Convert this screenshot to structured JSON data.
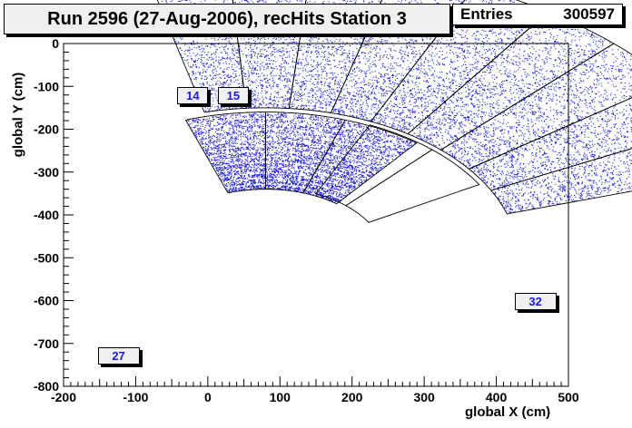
{
  "title": "Run 2596 (27-Aug-2006), recHits Station 3",
  "stats": {
    "entries_label": "Entries",
    "entries_value": "300597"
  },
  "colors": {
    "hits": "#1f1fe0",
    "frame": "#000000",
    "label_text": "#1a1adc",
    "label_bg": "#f0f0f0"
  },
  "chart_data": {
    "type": "scatter",
    "title": "Run 2596 (27-Aug-2006), recHits Station 3",
    "xlabel": "global X (cm)",
    "ylabel": "global Y (cm)",
    "xlim": [
      -200,
      500
    ],
    "ylim": [
      -800,
      0
    ],
    "x_ticks": [
      -200,
      -100,
      0,
      100,
      200,
      300,
      400,
      500
    ],
    "y_ticks": [
      0,
      -100,
      -200,
      -300,
      -400,
      -500,
      -600,
      -700,
      -800
    ],
    "grid": false,
    "chamber_labels": [
      {
        "text": "14",
        "x": -22,
        "y": -121
      },
      {
        "text": "15",
        "x": 34,
        "y": -121
      },
      {
        "text": "27",
        "x": -125,
        "y": -728
      },
      {
        "text": "32",
        "x": 453,
        "y": -600
      }
    ],
    "rings": [
      {
        "name": "inner ring",
        "r_min": 160,
        "r_max": 340,
        "phi_min_deg": 52,
        "phi_max_deg": 109
      },
      {
        "name": "outer ring",
        "r_min": 350,
        "r_max": 695,
        "phi_min_deg": 17,
        "phi_max_deg": 104
      }
    ],
    "empty_chamber": {
      "r_min": 165,
      "r_max": 342,
      "phi_min_deg": 30,
      "phi_max_deg": 65
    }
  }
}
